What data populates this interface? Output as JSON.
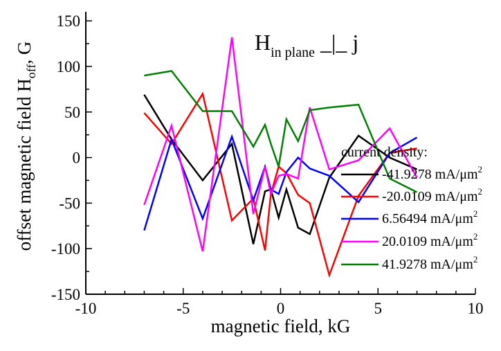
{
  "chart_data": {
    "type": "line",
    "title": {
      "main": "H",
      "sub": "in plane",
      "rest": " _|_ j"
    },
    "xlabel": "magnetic field, kG",
    "ylabel": {
      "main": "offset magnetic field H",
      "sub": "off",
      "rest": ", G"
    },
    "xlim": [
      -10,
      10
    ],
    "ylim": [
      -150,
      160
    ],
    "x_ticks": [
      -10,
      -5,
      0,
      5,
      10
    ],
    "y_ticks": [
      -150,
      -100,
      -50,
      0,
      50,
      100,
      150
    ],
    "x_tick_labels": [
      "-10",
      "-5",
      "0",
      "5",
      "10"
    ],
    "y_tick_labels": [
      "-150",
      "-100",
      "-50",
      "0",
      "50",
      "100",
      "150"
    ],
    "grid": false,
    "legend_title": "current density:",
    "legend_position": "right",
    "series": [
      {
        "name": "-41.9278 mA/μm",
        "name_sup": "2",
        "color": "#000000",
        "x": [
          -7,
          -5.6,
          -4,
          -2.5,
          -1.4,
          -0.8,
          -0.5,
          -0.1,
          0.3,
          0.9,
          1.5,
          2.5,
          4.0,
          5.6,
          7.0
        ],
        "y": [
          69,
          20,
          -25,
          15,
          -95,
          -37,
          -35,
          -66,
          -35,
          -77,
          -84,
          -22,
          24,
          0,
          -13
        ]
      },
      {
        "name": "-20.0109 mA/μm",
        "name_sup": "2",
        "color": "#ff0000",
        "x": [
          -7,
          -5.6,
          -4,
          -2.5,
          -1.4,
          -0.8,
          -0.5,
          -0.1,
          0.3,
          0.9,
          1.5,
          2.5,
          4.0,
          5.6,
          7.0
        ],
        "y": [
          49,
          15,
          70,
          -69,
          -45,
          -102,
          -40,
          -10,
          -17,
          -41,
          -50,
          -129,
          -42,
          5,
          10
        ]
      },
      {
        "name": "6.56494 mA/μm",
        "name_sup": "2",
        "color": "#0000ff",
        "x": [
          -7,
          -5.6,
          -4,
          -2.5,
          -1.4,
          -0.8,
          -0.5,
          -0.1,
          0.3,
          0.9,
          1.5,
          2.5,
          4.0,
          5.6,
          7.0
        ],
        "y": [
          -80,
          20,
          -67,
          23,
          -47,
          -10,
          -35,
          -40,
          -16,
          0,
          -12,
          -20,
          -49,
          5,
          22
        ]
      },
      {
        "name": "20.0109  mA/μm",
        "name_sup": "2",
        "color": "#ff00ff",
        "x": [
          -7,
          -5.6,
          -4,
          -2.5,
          -1.4,
          -0.8,
          -0.5,
          -0.1,
          0.3,
          0.9,
          1.5,
          2.5,
          4.0,
          5.6,
          7.0
        ],
        "y": [
          -52,
          35,
          -103,
          132,
          -62,
          -10,
          -40,
          -20,
          -18,
          -23,
          55,
          -13,
          -3,
          32,
          -22
        ]
      },
      {
        "name": "41.9278 mA/μm",
        "name_sup": "2",
        "color": "#008000",
        "x": [
          -7,
          -5.6,
          -4,
          -2.5,
          -1.4,
          -0.8,
          -0.5,
          -0.1,
          0.3,
          0.9,
          1.5,
          2.5,
          4.0,
          5.6,
          7.0
        ],
        "y": [
          90,
          95,
          51,
          51,
          12,
          36,
          15,
          -10,
          42,
          18,
          52,
          55,
          58,
          -23,
          -38
        ]
      }
    ]
  }
}
